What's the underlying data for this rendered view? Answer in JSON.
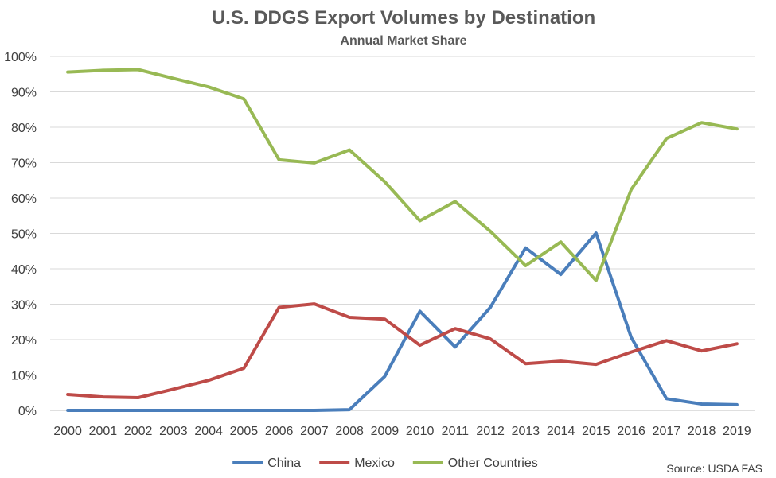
{
  "chart_data": {
    "type": "line",
    "title": "U.S. DDGS Export Volumes by Destination",
    "subtitle": "Annual Market Share",
    "source": "Source: USDA FAS",
    "xlabel": "",
    "ylabel": "",
    "ylim": [
      0,
      100
    ],
    "yticks": [
      "0%",
      "10%",
      "20%",
      "30%",
      "40%",
      "50%",
      "60%",
      "70%",
      "80%",
      "90%",
      "100%"
    ],
    "grid": true,
    "legend_position": "bottom",
    "x": [
      "2000",
      "2001",
      "2002",
      "2003",
      "2004",
      "2005",
      "2006",
      "2007",
      "2008",
      "2009",
      "2010",
      "2011",
      "2012",
      "2013",
      "2014",
      "2015",
      "2016",
      "2017",
      "2018",
      "2019"
    ],
    "series": [
      {
        "name": "China",
        "color": "#4a7ebb",
        "values": [
          0,
          0,
          0,
          0,
          0,
          0,
          0,
          0,
          0.2,
          9.6,
          28.0,
          17.9,
          29.1,
          45.9,
          38.4,
          50.1,
          20.6,
          3.3,
          1.8,
          1.6
        ]
      },
      {
        "name": "Mexico",
        "color": "#be4b48",
        "values": [
          4.5,
          3.8,
          3.6,
          6.0,
          8.5,
          11.9,
          29.1,
          30.1,
          26.3,
          25.8,
          18.4,
          23.1,
          20.2,
          13.2,
          13.9,
          13.0,
          16.5,
          19.7,
          16.8,
          18.8
        ]
      },
      {
        "name": "Other Countries",
        "color": "#98b954",
        "values": [
          95.6,
          96.1,
          96.3,
          93.8,
          91.4,
          88.0,
          70.8,
          69.9,
          73.6,
          64.6,
          53.6,
          59.0,
          50.6,
          40.9,
          47.6,
          36.7,
          62.4,
          76.8,
          81.3,
          79.5
        ]
      }
    ]
  }
}
